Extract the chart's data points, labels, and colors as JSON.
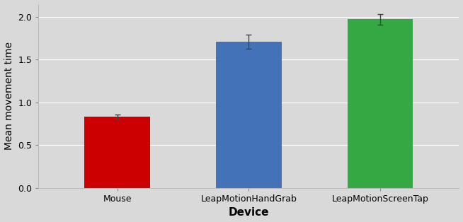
{
  "categories": [
    "Mouse",
    "LeapMotionHandGrab",
    "LeapMotionScreenTap"
  ],
  "values": [
    0.83,
    1.71,
    1.97
  ],
  "errors": [
    0.03,
    0.08,
    0.06
  ],
  "bar_colors": [
    "#cc0000",
    "#4472b8",
    "#33a843"
  ],
  "xlabel": "Device",
  "ylabel": "Mean movement time",
  "ylim": [
    0,
    2.15
  ],
  "yticks": [
    0.0,
    0.5,
    1.0,
    1.5,
    2.0
  ],
  "ytick_labels": [
    "0.0",
    "0.5",
    "1.0",
    "1.5",
    "2.0"
  ],
  "background_color": "#d9d9d9",
  "plot_bg_color": "#d9d9d9",
  "grid_color": "#ffffff",
  "xlabel_fontsize": 11,
  "ylabel_fontsize": 10,
  "tick_fontsize": 9,
  "xlabel_fontweight": "bold",
  "bar_width": 0.5,
  "x_positions": [
    0,
    1,
    2
  ],
  "figsize": [
    6.54,
    3.14
  ],
  "dpi": 100
}
